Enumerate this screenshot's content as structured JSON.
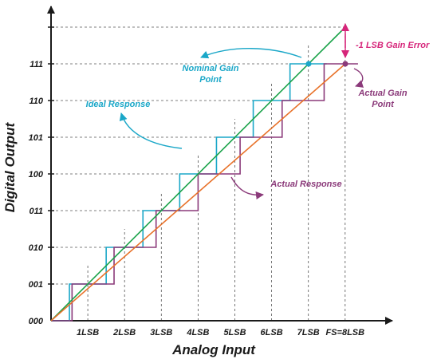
{
  "axes": {
    "x_title": "Analog Input",
    "y_title": "Digital Output",
    "x_ticks": [
      "1LSB",
      "2LSB",
      "3LSB",
      "4LSB",
      "5LSB",
      "6LSB",
      "7LSB",
      "FS=8LSB"
    ],
    "y_ticks": [
      "000",
      "001",
      "010",
      "011",
      "100",
      "101",
      "110",
      "111"
    ]
  },
  "annotations": {
    "gain_error": "-1 LSB Gain Error",
    "nominal_gain_line1": "Nominal Gain",
    "nominal_gain_line2": "Point",
    "ideal_response": "Ideal Response",
    "actual_gain_line1": "Actual Gain",
    "actual_gain_line2": "Point",
    "actual_response": "Actual Response"
  },
  "colors": {
    "ideal_line": "#1aa34a",
    "actual_line": "#e8722a",
    "ideal_staircase": "#1aa7c8",
    "actual_staircase": "#8b3a7a",
    "gain_error": "#d6257a",
    "axis": "#1a1a1a"
  }
}
